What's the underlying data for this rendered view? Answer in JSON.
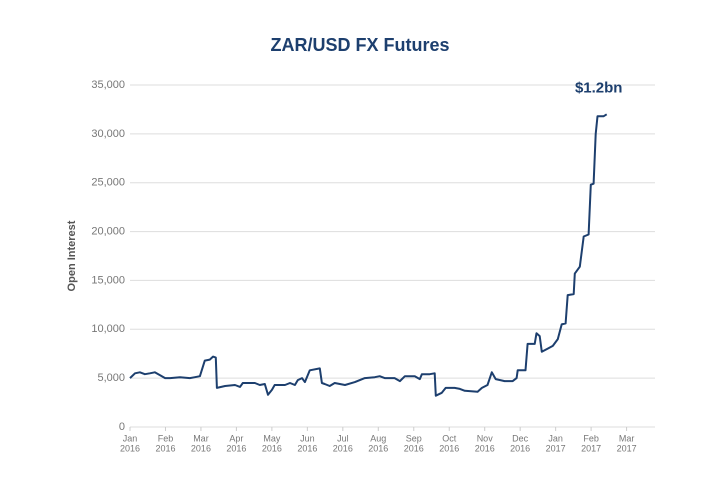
{
  "chart_data": {
    "type": "line",
    "title": "ZAR/USD FX Futures",
    "y_label": "Open Interest",
    "annotation": "$1.2bn",
    "xlim": [
      0,
      14.35
    ],
    "ylim": [
      0,
      35000
    ],
    "grid": true,
    "xticks": [
      {
        "value": 0,
        "label": [
          "Jan",
          "2016"
        ]
      },
      {
        "value": 1,
        "label": [
          "Feb",
          "2016"
        ]
      },
      {
        "value": 2,
        "label": [
          "Mar",
          "2016"
        ]
      },
      {
        "value": 3,
        "label": [
          "Apr",
          "2016"
        ]
      },
      {
        "value": 4,
        "label": [
          "May",
          "2016"
        ]
      },
      {
        "value": 5,
        "label": [
          "Jun",
          "2016"
        ]
      },
      {
        "value": 6,
        "label": [
          "Jul",
          "2016"
        ]
      },
      {
        "value": 7,
        "label": [
          "Aug",
          "2016"
        ]
      },
      {
        "value": 8,
        "label": [
          "Sep",
          "2016"
        ]
      },
      {
        "value": 9,
        "label": [
          "Oct",
          "2016"
        ]
      },
      {
        "value": 10,
        "label": [
          "Nov",
          "2016"
        ]
      },
      {
        "value": 11,
        "label": [
          "Dec",
          "2016"
        ]
      },
      {
        "value": 12,
        "label": [
          "Jan",
          "2017"
        ]
      },
      {
        "value": 13,
        "label": [
          "Feb",
          "2017"
        ]
      },
      {
        "value": 14,
        "label": [
          "Mar",
          "2017"
        ]
      }
    ],
    "yticks": [
      0,
      {
        "value": 5000,
        "label": "5,000"
      },
      {
        "value": 10000,
        "label": "10,000"
      },
      {
        "value": 15000,
        "label": "15,000"
      },
      {
        "value": 20000,
        "label": "20,000"
      },
      {
        "value": 25000,
        "label": "25,000"
      },
      {
        "value": 30000,
        "label": "30,000"
      },
      {
        "value": 35000,
        "label": "35,000"
      }
    ],
    "x": [
      0,
      0.14,
      0.28,
      0.42,
      0.56,
      0.7,
      0.85,
      0.99,
      1.13,
      1.41,
      1.69,
      1.83,
      1.97,
      2.11,
      2.25,
      2.34,
      2.42,
      2.45,
      2.68,
      2.96,
      3.1,
      3.18,
      3.52,
      3.66,
      3.8,
      3.89,
      4.0,
      4.08,
      4.37,
      4.51,
      4.65,
      4.73,
      4.85,
      4.93,
      5.07,
      5.35,
      5.41,
      5.49,
      5.63,
      5.77,
      6.06,
      6.34,
      6.62,
      6.9,
      7.04,
      7.18,
      7.46,
      7.61,
      7.75,
      8.03,
      8.17,
      8.23,
      8.45,
      8.59,
      8.62,
      8.79,
      8.9,
      9.15,
      9.3,
      9.44,
      9.8,
      9.92,
      10.08,
      10.2,
      10.31,
      10.56,
      10.79,
      10.9,
      10.93,
      11.15,
      11.21,
      11.41,
      11.46,
      11.55,
      11.61,
      11.77,
      11.92,
      12.06,
      12.17,
      12.28,
      12.34,
      12.51,
      12.54,
      12.68,
      12.79,
      12.93,
      12.99,
      13.07,
      13.13,
      13.18,
      13.35,
      13.44
    ],
    "series": [
      {
        "name": "Open Interest",
        "color": "#1d3f6e",
        "values": [
          5000,
          5500,
          5600,
          5400,
          5500,
          5600,
          5300,
          5000,
          5000,
          5100,
          5000,
          5100,
          5200,
          6800,
          6900,
          7200,
          7100,
          4000,
          4200,
          4300,
          4100,
          4500,
          4500,
          4300,
          4400,
          3300,
          3800,
          4300,
          4300,
          4500,
          4300,
          4800,
          5000,
          4600,
          5800,
          6000,
          4500,
          4400,
          4200,
          4500,
          4300,
          4600,
          5000,
          5100,
          5200,
          5000,
          5000,
          4700,
          5200,
          5200,
          4900,
          5400,
          5400,
          5500,
          3200,
          3500,
          4000,
          4000,
          3900,
          3700,
          3600,
          4000,
          4300,
          5600,
          4900,
          4700,
          4700,
          5000,
          5800,
          5800,
          8500,
          8500,
          9600,
          9300,
          7700,
          8000,
          8300,
          9000,
          10500,
          10600,
          13500,
          13600,
          15700,
          16400,
          19500,
          19700,
          24800,
          24900,
          30000,
          31800,
          31800,
          32000
        ]
      }
    ]
  }
}
